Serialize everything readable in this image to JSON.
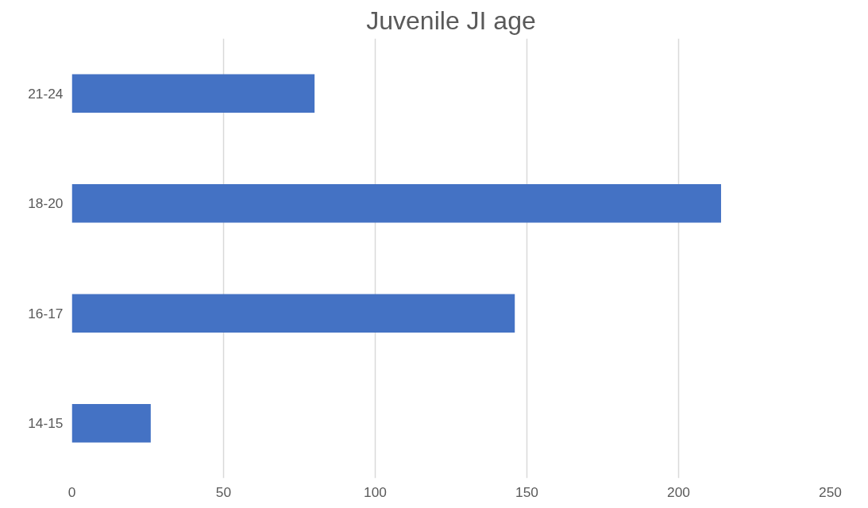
{
  "chart_data": {
    "type": "bar",
    "orientation": "horizontal",
    "title": "Juvenile JI age",
    "categories": [
      "21-24",
      "18-20",
      "16-17",
      "14-15"
    ],
    "values": [
      80,
      214,
      146,
      26
    ],
    "color": "#4472c4",
    "xlim": [
      0,
      250
    ],
    "xticks": [
      0,
      50,
      100,
      150,
      200,
      250
    ],
    "grid": "x"
  }
}
